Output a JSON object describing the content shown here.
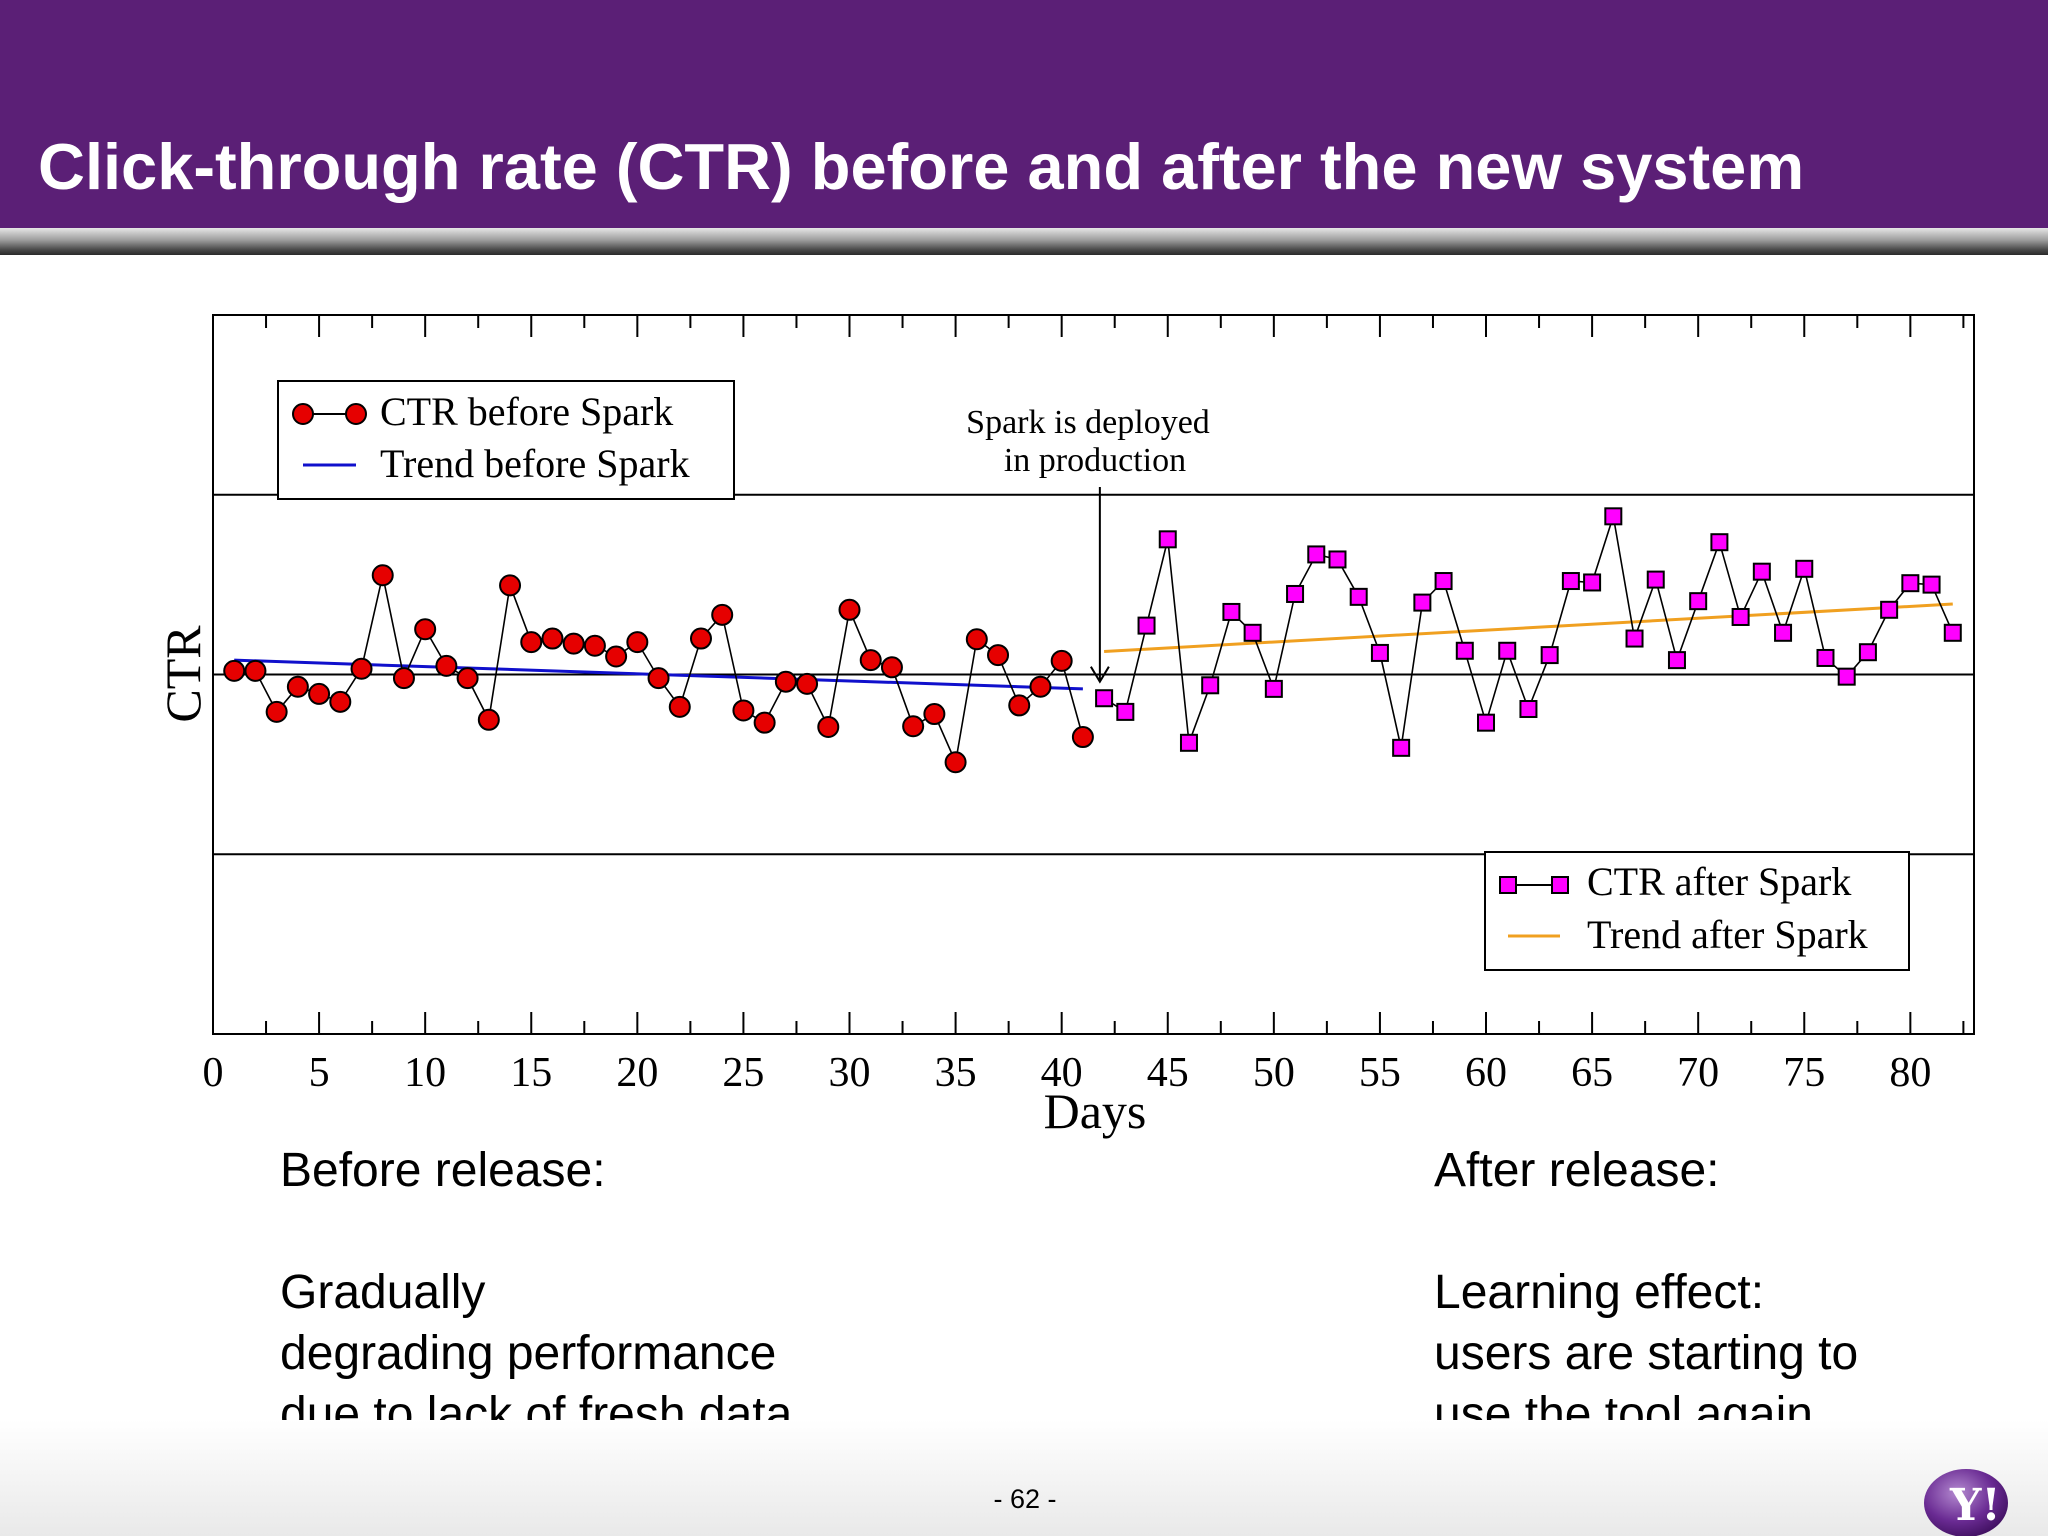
{
  "slide": {
    "title": "Click-through rate (CTR) before and after the new system",
    "page_number": "- 62 -",
    "logo_text": "Y!"
  },
  "notes": {
    "before": {
      "heading": "Before release:",
      "lines": [
        "Gradually",
        "degrading performance",
        "due to lack of fresh data"
      ]
    },
    "after": {
      "heading": "After release:",
      "lines": [
        "Learning effect:",
        "users are starting to",
        "use the tool again"
      ]
    }
  },
  "colors": {
    "header": "#5b1f76",
    "before_marker": "#e60000",
    "after_marker": "#ff00ff",
    "trend_before": "#1010cc",
    "trend_after": "#f0a020"
  },
  "chart_data": {
    "type": "line",
    "title": "",
    "xlabel": "Days",
    "ylabel": "CTR",
    "xlim": [
      0,
      83
    ],
    "ylim": [
      -5,
      5
    ],
    "x_ticks": [
      0,
      5,
      10,
      15,
      20,
      25,
      30,
      35,
      40,
      45,
      50,
      55,
      60,
      65,
      70,
      75,
      80
    ],
    "y_gridlines": [
      -2.5,
      0,
      2.5
    ],
    "y_tick_labels_shown": false,
    "legends": [
      {
        "placement": "top-left",
        "entries": [
          "CTR before Spark",
          "Trend before Spark"
        ]
      },
      {
        "placement": "bottom-right",
        "entries": [
          "CTR after Spark",
          "Trend after Spark"
        ]
      }
    ],
    "annotation": {
      "lines": [
        "Spark is deployed",
        "in production"
      ],
      "x": 41.8
    },
    "series": [
      {
        "name": "CTR before Spark",
        "marker": "circle",
        "x": [
          1,
          2,
          3,
          4,
          5,
          6,
          7,
          8,
          9,
          10,
          11,
          12,
          13,
          14,
          15,
          16,
          17,
          18,
          19,
          20,
          21,
          22,
          23,
          24,
          25,
          26,
          27,
          28,
          29,
          30,
          31,
          32,
          33,
          34,
          35,
          36,
          37,
          38,
          39,
          40,
          41
        ],
        "y": [
          0.05,
          0.05,
          -0.52,
          -0.17,
          -0.27,
          -0.38,
          0.08,
          1.38,
          -0.05,
          0.63,
          0.12,
          -0.05,
          -0.63,
          1.24,
          0.45,
          0.5,
          0.43,
          0.4,
          0.25,
          0.45,
          -0.05,
          -0.45,
          0.5,
          0.83,
          -0.5,
          -0.67,
          -0.1,
          -0.13,
          -0.73,
          0.9,
          0.2,
          0.1,
          -0.72,
          -0.55,
          -1.22,
          0.49,
          0.27,
          -0.43,
          -0.17,
          0.19,
          -0.87
        ]
      },
      {
        "name": "Trend before Spark",
        "type": "line",
        "x": [
          1,
          41
        ],
        "y": [
          0.2,
          -0.2
        ]
      },
      {
        "name": "CTR after Spark",
        "marker": "square",
        "x": [
          42,
          43,
          44,
          45,
          46,
          47,
          48,
          49,
          50,
          51,
          52,
          53,
          54,
          55,
          56,
          57,
          58,
          59,
          60,
          61,
          62,
          63,
          64,
          65,
          66,
          67,
          68,
          69,
          70,
          71,
          72,
          73,
          74,
          75,
          76,
          77,
          78,
          79,
          80,
          81,
          82
        ],
        "y": [
          -0.33,
          -0.52,
          0.68,
          1.88,
          -0.95,
          -0.15,
          0.87,
          0.58,
          -0.2,
          1.12,
          1.67,
          1.6,
          1.08,
          0.3,
          -1.02,
          1.0,
          1.3,
          0.33,
          -0.67,
          0.33,
          -0.48,
          0.27,
          1.3,
          1.28,
          2.2,
          0.5,
          1.32,
          0.2,
          1.02,
          1.84,
          0.8,
          1.43,
          0.58,
          1.47,
          0.23,
          -0.03,
          0.31,
          0.9,
          1.27,
          1.25,
          0.58
        ]
      },
      {
        "name": "Trend after Spark",
        "type": "line",
        "x": [
          42,
          82
        ],
        "y": [
          0.32,
          0.98
        ]
      }
    ]
  }
}
